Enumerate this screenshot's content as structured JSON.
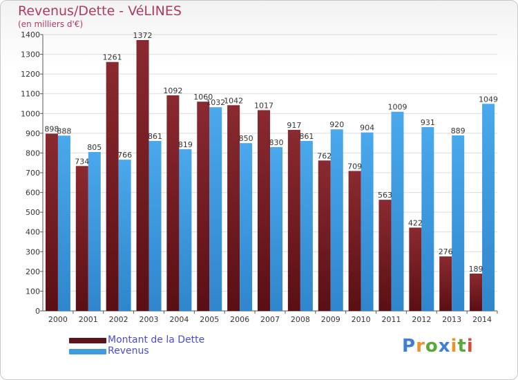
{
  "header": {
    "title": "Revenus/Dette - VéLINES",
    "subtitle": "(en milliers d'€)"
  },
  "logo": {
    "text": "Proxiti",
    "letters": [
      {
        "ch": "P",
        "color": "#3d7fd6"
      },
      {
        "ch": "r",
        "color": "#e8952d"
      },
      {
        "ch": "o",
        "color": "#5aa83a"
      },
      {
        "ch": "x",
        "color": "#3d7fd6"
      },
      {
        "ch": "i",
        "color": "#e8952d"
      },
      {
        "ch": "t",
        "color": "#5aa83a"
      },
      {
        "ch": "i",
        "color": "#d94a3a"
      }
    ]
  },
  "chart_data": {
    "type": "bar",
    "title": "Revenus/Dette - VéLINES",
    "subtitle": "(en milliers d'€)",
    "categories": [
      "2000",
      "2001",
      "2002",
      "2003",
      "2004",
      "2005",
      "2006",
      "2007",
      "2008",
      "2009",
      "2010",
      "2011",
      "2012",
      "2013",
      "2014"
    ],
    "series": [
      {
        "name": "Montant de la Dette",
        "color": "#7a1f25",
        "values": [
          898,
          734,
          1261,
          1372,
          1092,
          1060,
          1042,
          1017,
          917,
          762,
          709,
          563,
          422,
          276,
          189
        ],
        "labels": [
          "898",
          "734",
          "1261",
          "1372",
          "1092",
          "1060",
          "1042",
          "1017",
          "917",
          "762",
          "709",
          "563",
          "422",
          "276",
          "189"
        ]
      },
      {
        "name": "Revenus",
        "color": "#3f9be0",
        "values": [
          888,
          805,
          766,
          861,
          819,
          1032,
          850,
          830,
          861,
          920,
          904,
          1009,
          931,
          889,
          1049
        ],
        "labels": [
          "888",
          "805",
          "766",
          "861",
          "819",
          "1032",
          "850",
          "830",
          "861",
          "920",
          "904",
          "1009",
          "931",
          "889",
          "1049"
        ]
      }
    ],
    "ylim": [
      0,
      1400
    ],
    "yticks": [
      "0",
      "100",
      "200",
      "300",
      "400",
      "500",
      "600",
      "700",
      "800",
      "900",
      "1000",
      "1100",
      "1200",
      "1300",
      "1400"
    ],
    "grid": true,
    "legend": "bottom-left"
  }
}
